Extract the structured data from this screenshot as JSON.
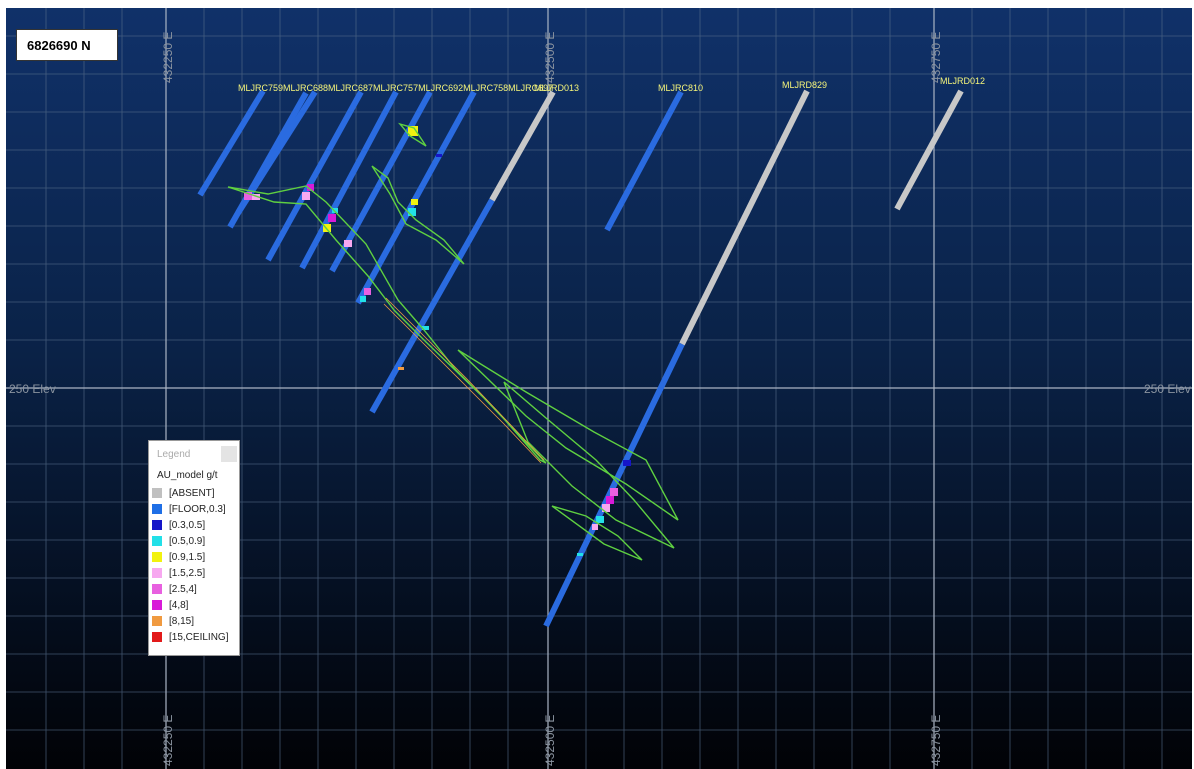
{
  "section": {
    "northing_label": "6826690 N",
    "easting_labels": [
      "432250 E",
      "432500 E",
      "432750 E"
    ],
    "elevation_label": "250 Elev"
  },
  "drillholes": [
    "MLJRC759",
    "MLJRC688",
    "MLJRC687",
    "MLJRC757",
    "MLJRC692",
    "MLJRC758",
    "MLJRC697",
    "MLJRD013",
    "MLJRC810",
    "MLJRD829",
    "MLJRD012"
  ],
  "hole_labels_row": "MLJRC759MLJRC688MLJRC687MLJRC757MLJRC692MLJRC758MLJRC697",
  "legend": {
    "title": "Legend",
    "attribute": "AU_model g/t",
    "items": [
      {
        "label": "[ABSENT]",
        "color": "#c0c0c0"
      },
      {
        "label": "[FLOOR,0.3]",
        "color": "#1f6fe6"
      },
      {
        "label": "[0.3,0.5]",
        "color": "#1616c8"
      },
      {
        "label": "[0.5,0.9]",
        "color": "#22e0e8"
      },
      {
        "label": "[0.9,1.5]",
        "color": "#f2f20f"
      },
      {
        "label": "[1.5,2.5]",
        "color": "#f7a8f0"
      },
      {
        "label": "[2.5,4]",
        "color": "#e860e0"
      },
      {
        "label": "[4,8]",
        "color": "#d81ad8"
      },
      {
        "label": "[8,15]",
        "color": "#f09a40"
      },
      {
        "label": "[15,CEILING]",
        "color": "#e21a1a"
      }
    ]
  },
  "colors": {
    "background_top": "#0f2f63",
    "background_bottom": "#000000",
    "grid": "#5a6e8a",
    "wireframe": "#5fd041",
    "hole_label": "#f5f57a"
  }
}
